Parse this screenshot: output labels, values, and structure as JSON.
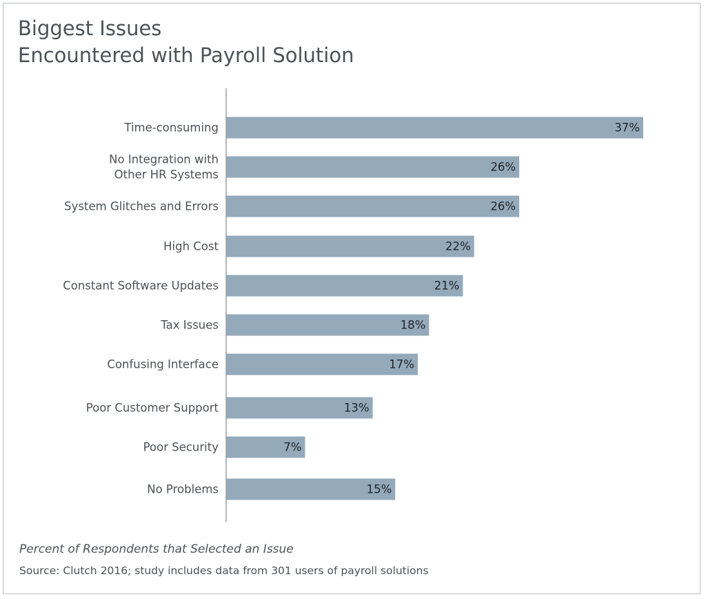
{
  "chart_data": {
    "type": "bar",
    "orientation": "horizontal",
    "title_lines": [
      "Biggest Issues",
      "Encountered with Payroll Solution"
    ],
    "categories": [
      [
        "Time-consuming"
      ],
      [
        "No Integration with",
        "Other HR Systems"
      ],
      [
        "System Glitches and Errors"
      ],
      [
        "High Cost"
      ],
      [
        "Constant Software Updates"
      ],
      [
        "Tax Issues"
      ],
      [
        "Confusing Interface"
      ],
      [
        "Poor Customer Support"
      ],
      [
        "Poor Security"
      ],
      [
        "No Problems"
      ]
    ],
    "values": [
      37,
      26,
      26,
      22,
      21,
      18,
      17,
      13,
      7,
      15
    ],
    "value_labels": [
      "37%",
      "26%",
      "26%",
      "22%",
      "21%",
      "18%",
      "17%",
      "13%",
      "7%",
      "15%"
    ],
    "unit": "%",
    "xlim": [
      0,
      37
    ],
    "xlabel": "Percent of Respondents that Selected an Issue",
    "grid": false,
    "bar_color": "#94aabb",
    "axis_color": "#9a9ea2"
  },
  "source": "Source: Clutch 2016; study includes data from 301 users of payroll solutions"
}
